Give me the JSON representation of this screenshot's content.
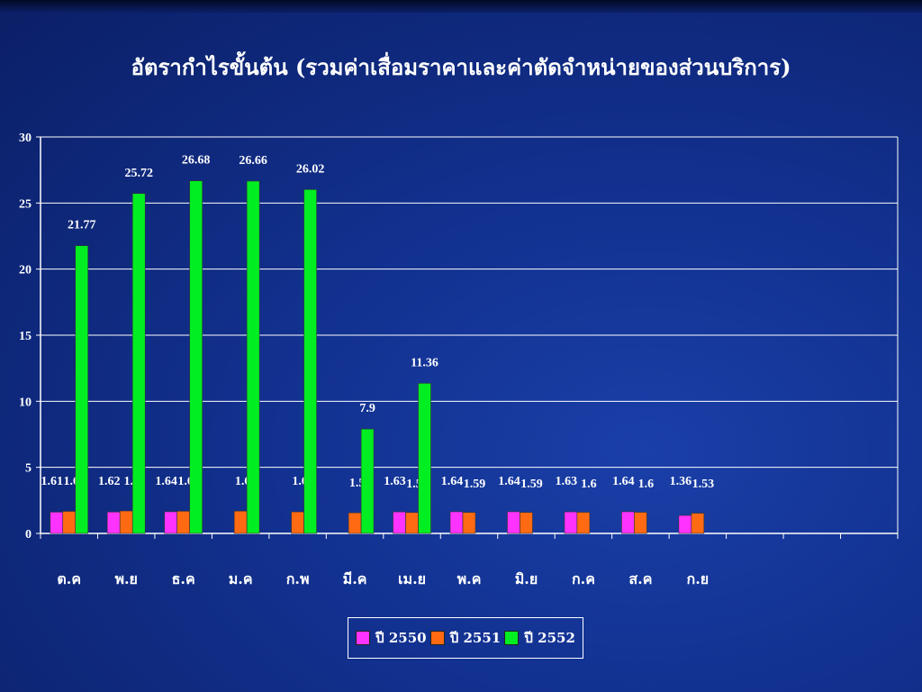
{
  "title": "อัตรากำไรขั้นต้น (รวมค่าเสื่อมราคาและค่าตัดจำหน่ายของส่วนบริการ)",
  "colors": {
    "background": "#123190",
    "grid": "#ffffff",
    "text": "#ffffff"
  },
  "chart_data": {
    "type": "bar",
    "categories": [
      "ต.ค",
      "พ.ย",
      "ธ.ค",
      "ม.ค",
      "ก.พ",
      "มี.ค",
      "เม.ย",
      "พ.ค",
      "มิ.ย",
      "ก.ค",
      "ส.ค",
      "ก.ย",
      "",
      "",
      ""
    ],
    "ylim": [
      0,
      30
    ],
    "yticks": [
      0,
      5,
      10,
      15,
      20,
      25,
      30
    ],
    "grid": true,
    "legend_position": "bottom",
    "series": [
      {
        "name": "ปี 2550",
        "color": "#ff33ff",
        "values": [
          1.61,
          1.62,
          1.64,
          null,
          null,
          null,
          1.63,
          1.64,
          1.64,
          1.63,
          1.64,
          1.36,
          null,
          null,
          null
        ]
      },
      {
        "name": "ปี 2551",
        "color": "#ff6a13",
        "values": [
          1.67,
          1.7,
          1.68,
          1.69,
          1.63,
          1.56,
          1.58,
          1.59,
          1.59,
          1.6,
          1.6,
          1.53,
          null,
          null,
          null
        ]
      },
      {
        "name": "ปี 2552",
        "color": "#00ee22",
        "values": [
          21.77,
          25.72,
          26.68,
          26.66,
          26.02,
          7.9,
          11.36,
          null,
          null,
          null,
          null,
          null,
          null,
          null,
          null
        ]
      }
    ]
  }
}
